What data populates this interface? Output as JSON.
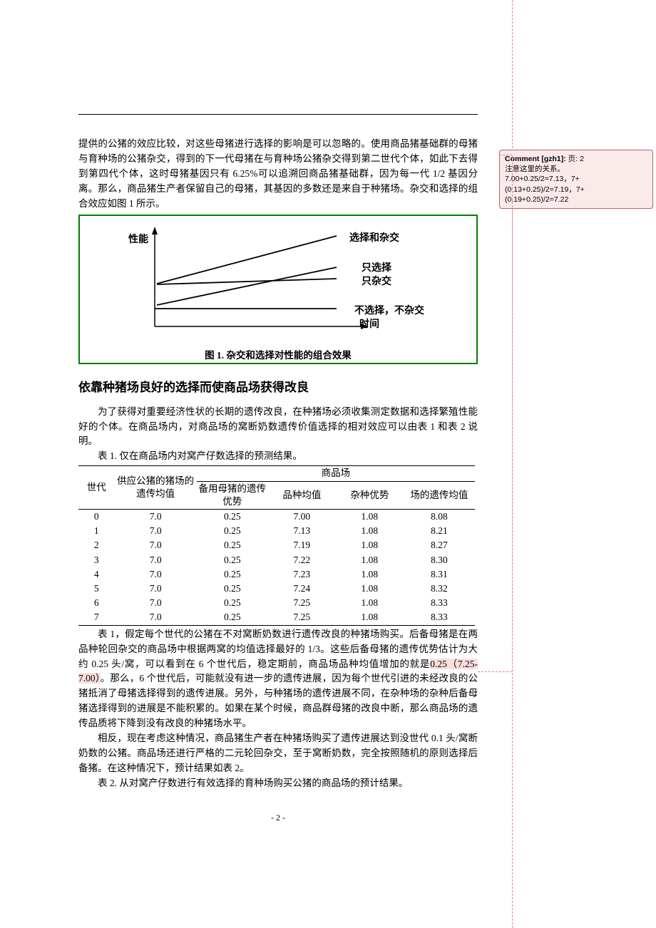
{
  "paragraphs": {
    "p1": "提供的公猪的效应比较，对这些母猪进行选择的影响是可以忽略的。使用商品猪基础群的母猪与育种场的公猪杂交，得到的下一代母猪在与育种场公猪杂交得到第二世代个体，如此下去得到第四代个体，这时母猪基因只有 6.25%可以追溯回商品猪基础群，因为每一代 1/2 基因分离。那么，商品猪生产者保留自己的母猪，其基因的多数还是来自于种猪场。杂交和选择的组合效应如图 1 所示。",
    "p2a": "表 1，假定每个世代的公猪在不对窝断奶数进行遗传改良的种猪场购买。后备母猪是在两品种轮回杂交的商品场中根据两窝的均值选择最好的 1/3。这些后备母猪的遗传优势估计为大约 0.25 头/窝，可以看到在 6 个世代后，稳定期前，商品场品种均值增加的就是",
    "p2_highlight": "0.25（7.25-7.00）",
    "p2b": "。那么，6 个世代后，可能就没有进一步的遗传进展，因为每个世代引进的未经改良的公猪抵消了母猪选择得到的遗传进展。另外，与种猪场的遗传进展不同，在杂种场的杂种后备母猪选择得到的进展是不能积累的。如果在某个时候，商品群母猪的改良中断，那么商品场的遗传品质将下降到没有改良的种猪场水平。",
    "p3": "相反，现在考虑这种情况，商品猪生产者在种猪场购买了遗传进展达到没世代 0.1 头/窝断奶数的公猪。商品场还进行严格的二元轮回杂交，至于窝断奶数，完全按照随机的原则选择后备猪。在这种情况下，预计结果如表 2。",
    "intro": "为了获得对重要经济性状的长期的遗传改良，在种猪场必须收集测定数据和选择繁殖性能好的个体。在商品场内，对商品场的窝断奶数遗传价值选择的相对效应可以由表 1 和表 2 说明。"
  },
  "heading": "依靠种猪场良好的选择而使商品场获得改良",
  "figure": {
    "y_label": "性能",
    "x_label": "时间",
    "caption": "图 1. 杂交和选择对性能的组合效果",
    "lines": {
      "both": "选择和杂交",
      "select_only": "只选择",
      "cross_only": "只杂交",
      "none": "不选择，不杂交"
    },
    "colors": {
      "border": "#008000",
      "line": "#000"
    }
  },
  "table1": {
    "caption": "表 1. 仅在商品场内对窝产仔数选择的预测结果。",
    "header_group": "商品场",
    "cols": {
      "gen": "世代",
      "farm_value": "供应公猪的猪场的遗传均值",
      "adv": "备用母猪的遗传优势",
      "breed_mean": "品种均值",
      "hybrid_adv": "杂种优势",
      "herd_value": "场的遗传均值"
    },
    "rows": [
      {
        "gen": "0",
        "farm": "7.0",
        "adv": "0.25",
        "mean": "7.00",
        "hyb": "1.08",
        "herd": "8.08"
      },
      {
        "gen": "1",
        "farm": "7.0",
        "adv": "0.25",
        "mean": "7.13",
        "hyb": "1.08",
        "herd": "8.21"
      },
      {
        "gen": "2",
        "farm": "7.0",
        "adv": "0.25",
        "mean": "7.19",
        "hyb": "1.08",
        "herd": "8.27"
      },
      {
        "gen": "3",
        "farm": "7.0",
        "adv": "0.25",
        "mean": "7.22",
        "hyb": "1.08",
        "herd": "8.30"
      },
      {
        "gen": "4",
        "farm": "7.0",
        "adv": "0.25",
        "mean": "7.23",
        "hyb": "1.08",
        "herd": "8.31"
      },
      {
        "gen": "5",
        "farm": "7.0",
        "adv": "0.25",
        "mean": "7.24",
        "hyb": "1.08",
        "herd": "8.32"
      },
      {
        "gen": "6",
        "farm": "7.0",
        "adv": "0.25",
        "mean": "7.25",
        "hyb": "1.08",
        "herd": "8.33"
      },
      {
        "gen": "7",
        "farm": "7.0",
        "adv": "0.25",
        "mean": "7.25",
        "hyb": "1.08",
        "herd": "8.33"
      }
    ]
  },
  "table2_caption": "表 2. 从对窝产仔数进行有效选择的育种场购买公猪的商品场的预计结果。",
  "page_number": "- 2 -",
  "comment": {
    "author_label": "Comment [gzh1]:",
    "page_label": "页:  2",
    "body_line1": "注意这里的关系。",
    "body_line2": "7.00+0.25/2=7.13，7+(0.13+0.25)/2=7.19，7+(0.19+0.25)/2=7.22"
  }
}
